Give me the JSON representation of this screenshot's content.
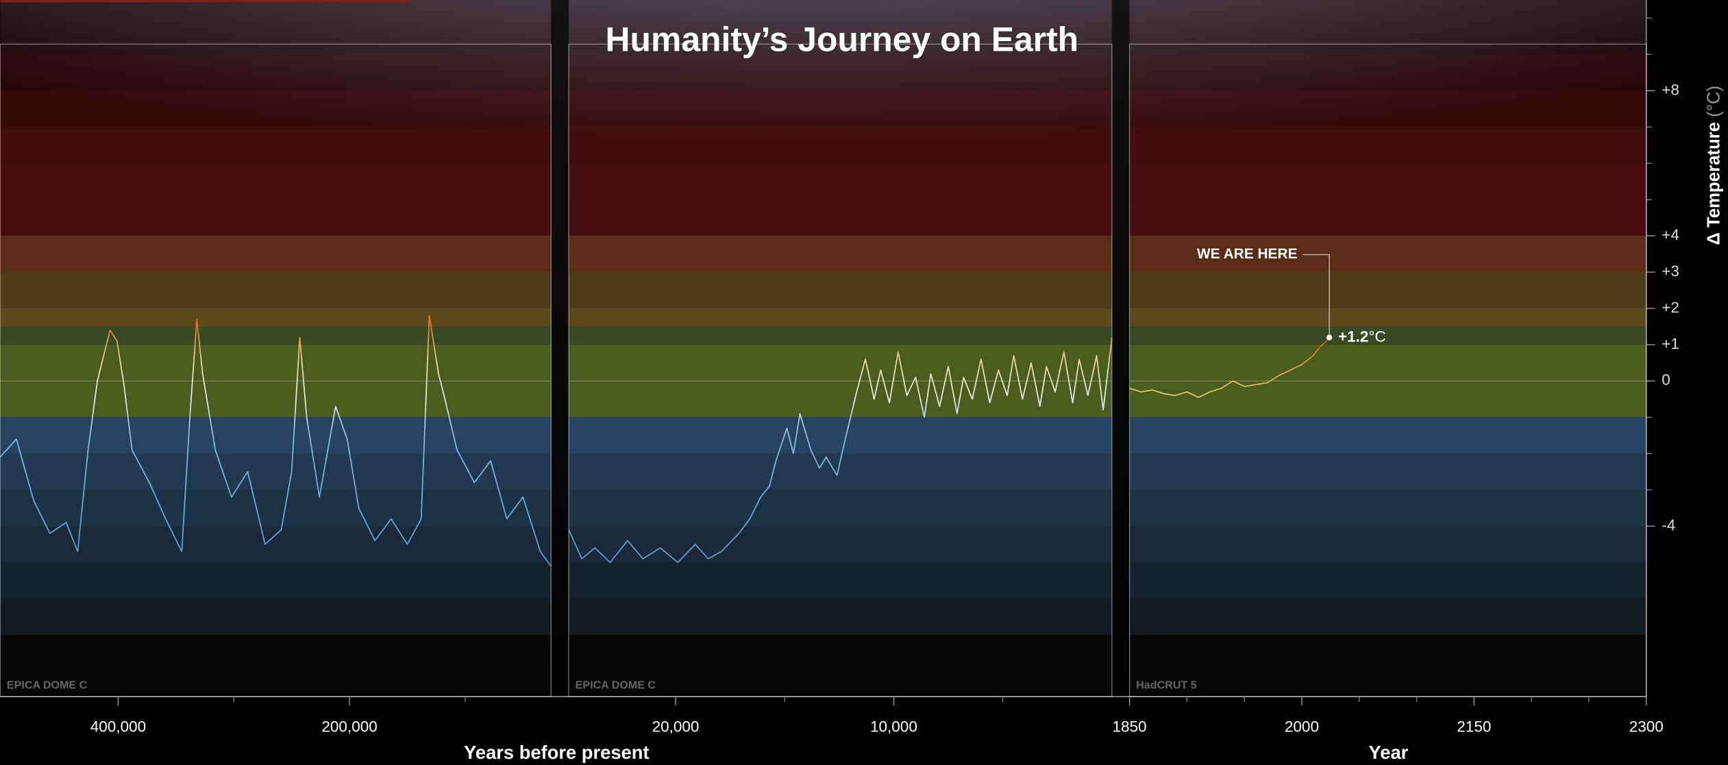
{
  "title": "Humanity’s Journey on Earth",
  "y_axis": {
    "label": "Δ Temperature",
    "unit": "(°C)",
    "ylim": [
      -8.7,
      10.5
    ],
    "yticks": [
      {
        "value": 8,
        "label": "+8"
      },
      {
        "value": 4,
        "label": "+4"
      },
      {
        "value": 3,
        "label": "+3"
      },
      {
        "value": 2,
        "label": "+2"
      },
      {
        "value": 1,
        "label": "+1"
      },
      0,
      -4
    ],
    "yminorticks": [
      10,
      9,
      7,
      6,
      5,
      -1,
      -2,
      -3
    ]
  },
  "x_axis_labels": [
    "Years before present",
    "Year"
  ],
  "bands": [
    {
      "from": 9,
      "to": 10.5,
      "color": "rgba(120,20,25,0.22)"
    },
    {
      "from": 8,
      "to": 9,
      "color": "rgba(120,20,25,0.32)"
    },
    {
      "from": 7,
      "to": 8,
      "color": "rgba(120,20,25,0.45)"
    },
    {
      "from": 6,
      "to": 7,
      "color": "rgba(110,18,22,0.6)"
    },
    {
      "from": 5,
      "to": 6,
      "color": "rgba(95,16,20,0.75)"
    },
    {
      "from": 4,
      "to": 5,
      "color": "rgba(80,14,18,0.88)"
    },
    {
      "from": 3,
      "to": 4,
      "color": "#5a2c16"
    },
    {
      "from": 2,
      "to": 3,
      "color": "#4f3b18"
    },
    {
      "from": 1.5,
      "to": 2,
      "color": "#5c4a1c"
    },
    {
      "from": 1,
      "to": 1.5,
      "color": "#384a24"
    },
    {
      "from": -1,
      "to": 1,
      "color": "#4a5c1e"
    },
    {
      "from": -2,
      "to": -1,
      "color": "#264462"
    },
    {
      "from": -3,
      "to": -2,
      "color": "#213a52"
    },
    {
      "from": -4,
      "to": -3,
      "color": "#1c3245"
    },
    {
      "from": -5,
      "to": -4,
      "color": "#19293a"
    },
    {
      "from": -6,
      "to": -5,
      "color": "#15212e"
    },
    {
      "from": -7,
      "to": -6,
      "color": "#121a22"
    },
    {
      "from": -8.7,
      "to": -7,
      "color": "#060606"
    }
  ],
  "chart_data": [
    {
      "type": "line",
      "source": "EPICA DOME C",
      "xlim": [
        502000,
        25700
      ],
      "xticks": [
        {
          "value": 400000,
          "label": "400,000"
        },
        {
          "value": 200000,
          "label": "200,000"
        }
      ],
      "xminorticks": [
        300000,
        100000
      ],
      "x": [
        502000,
        488000,
        473000,
        459000,
        445000,
        435000,
        426000,
        418000,
        407000,
        401000,
        395000,
        388000,
        373000,
        359000,
        345000,
        338000,
        332000,
        327000,
        316000,
        302000,
        288000,
        273000,
        259000,
        250000,
        243000,
        237000,
        226000,
        212000,
        202000,
        192000,
        178000,
        164000,
        150000,
        138000,
        131000,
        123000,
        116000,
        107000,
        92000,
        78000,
        64000,
        50000,
        35000,
        26000
      ],
      "values": [
        -2.1,
        -1.6,
        -3.3,
        -4.2,
        -3.9,
        -4.7,
        -1.9,
        0,
        1.4,
        1.1,
        -0.1,
        -1.9,
        -2.8,
        -3.8,
        -4.7,
        -1.0,
        1.7,
        0.2,
        -1.9,
        -3.2,
        -2.5,
        -4.5,
        -4.1,
        -2.5,
        1.2,
        -1.0,
        -3.2,
        -0.7,
        -1.6,
        -3.5,
        -4.4,
        -3.8,
        -4.5,
        -3.8,
        1.8,
        0.2,
        -0.7,
        -1.9,
        -2.8,
        -2.2,
        -3.8,
        -3.2,
        -4.7,
        -5.1
      ],
      "color_stops": [
        {
          "value": 1.5,
          "color": "#e8742a"
        },
        {
          "value": 0.5,
          "color": "#f0d9a0"
        },
        {
          "value": -0.5,
          "color": "#e6ecef"
        },
        {
          "value": -1.5,
          "color": "#86bce4"
        },
        {
          "value": -5,
          "color": "#5a9ad0"
        }
      ]
    },
    {
      "type": "line",
      "source": "EPICA DOME C",
      "xlim": [
        24900,
        0
      ],
      "xticks": [
        {
          "value": 20000,
          "label": "20,000"
        },
        {
          "value": 10000,
          "label": "10,000"
        }
      ],
      "xminorticks": [
        15000,
        5000
      ],
      "x": [
        24900,
        24300,
        23700,
        23000,
        22200,
        21500,
        20700,
        19900,
        19100,
        18500,
        17900,
        17100,
        16600,
        16100,
        15700,
        15400,
        14900,
        14600,
        14300,
        13800,
        13400,
        13100,
        12600,
        12300,
        12100,
        11700,
        11300,
        10900,
        10600,
        10200,
        9800,
        9400,
        9000,
        8600,
        8300,
        7900,
        7500,
        7100,
        6800,
        6400,
        6000,
        5600,
        5200,
        4800,
        4500,
        4100,
        3700,
        3300,
        3000,
        2600,
        2200,
        1800,
        1500,
        1100,
        700,
        400,
        0
      ],
      "values": [
        -4.1,
        -4.9,
        -4.6,
        -5.0,
        -4.4,
        -4.9,
        -4.6,
        -5.0,
        -4.5,
        -4.9,
        -4.7,
        -4.2,
        -3.8,
        -3.2,
        -2.9,
        -2.2,
        -1.3,
        -2.0,
        -0.9,
        -1.9,
        -2.4,
        -2.1,
        -2.6,
        -1.8,
        -1.3,
        -0.3,
        0.6,
        -0.5,
        0.3,
        -0.6,
        0.8,
        -0.4,
        0.1,
        -1.0,
        0.2,
        -0.7,
        0.4,
        -0.9,
        0.1,
        -0.5,
        0.6,
        -0.6,
        0.3,
        -0.4,
        0.7,
        -0.5,
        0.5,
        -0.7,
        0.4,
        -0.3,
        0.8,
        -0.6,
        0.6,
        -0.4,
        0.7,
        -0.8,
        1.2
      ],
      "color_stops": [
        {
          "value": 1.5,
          "color": "#e8742a"
        },
        {
          "value": 0.5,
          "color": "#f0d9a0"
        },
        {
          "value": -0.5,
          "color": "#e6ecef"
        },
        {
          "value": -1.5,
          "color": "#86bce4"
        },
        {
          "value": -5,
          "color": "#5a9ad0"
        }
      ]
    },
    {
      "type": "line",
      "source": "HadCRUT 5",
      "xlim": [
        1850,
        2300
      ],
      "xticks": [
        1850,
        2000,
        2150,
        2300
      ],
      "xminorticks": [
        1900,
        1950,
        2050,
        2100,
        2200,
        2250
      ],
      "x": [
        1850,
        1860,
        1870,
        1880,
        1890,
        1900,
        1910,
        1920,
        1930,
        1940,
        1950,
        1960,
        1970,
        1980,
        1990,
        2000,
        2010,
        2016,
        2020,
        2024
      ],
      "values": [
        -0.2,
        -0.3,
        -0.25,
        -0.35,
        -0.4,
        -0.3,
        -0.45,
        -0.3,
        -0.2,
        0.0,
        -0.15,
        -0.1,
        -0.05,
        0.15,
        0.3,
        0.45,
        0.7,
        0.95,
        1.05,
        1.2
      ],
      "color_stops": [
        {
          "value": 1.2,
          "color": "#d8502a"
        },
        {
          "value": 0.6,
          "color": "#e09a30"
        },
        {
          "value": -0.5,
          "color": "#e8d070"
        }
      ],
      "annotation": {
        "text": "WE ARE HERE",
        "x": 2024,
        "y": 1.2,
        "label": "+1.2",
        "unit": "°C"
      }
    }
  ]
}
